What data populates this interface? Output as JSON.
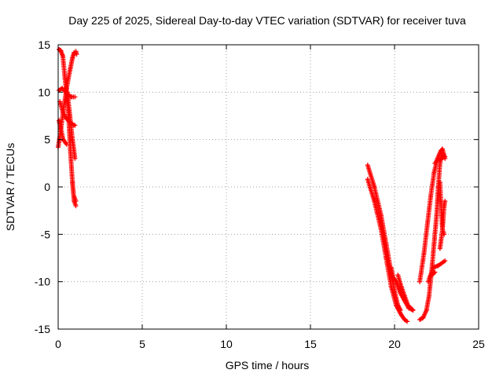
{
  "chart_data": {
    "type": "scatter",
    "title": "Day 225 of 2025, Sidereal Day-to-day VTEC variation (SDTVAR) for receiver tuva",
    "xlabel": "GPS time / hours",
    "ylabel": "SDTVAR / TECUs",
    "xlim": [
      0,
      25
    ],
    "ylim": [
      -15,
      15
    ],
    "xticks": [
      0,
      5,
      10,
      15,
      20,
      25
    ],
    "yticks": [
      -15,
      -10,
      -5,
      0,
      5,
      10,
      15
    ],
    "grid": true,
    "marker": "plus",
    "color": "#ff0000",
    "series": [
      {
        "name": "",
        "segments": [
          [
            [
              0.0,
              4.2
            ],
            [
              0.12,
              5.5
            ],
            [
              0.3,
              8.0
            ],
            [
              0.5,
              10.4
            ],
            [
              0.7,
              12.3
            ],
            [
              0.85,
              13.6
            ],
            [
              0.95,
              14.2
            ]
          ],
          [
            [
              0.05,
              14.5
            ],
            [
              0.15,
              14.4
            ],
            [
              0.28,
              13.8
            ],
            [
              0.4,
              11.5
            ],
            [
              0.5,
              10.0
            ],
            [
              0.62,
              7.5
            ],
            [
              0.72,
              4.0
            ],
            [
              0.85,
              0.5
            ],
            [
              0.95,
              -1.5
            ],
            [
              1.05,
              -2.0
            ]
          ],
          [
            [
              0.05,
              10.2
            ],
            [
              0.25,
              10.4
            ],
            [
              0.45,
              10.0
            ],
            [
              0.6,
              9.7
            ],
            [
              0.8,
              9.5
            ],
            [
              1.0,
              9.5
            ]
          ],
          [
            [
              0.1,
              9.0
            ],
            [
              0.3,
              7.8
            ],
            [
              0.5,
              7.2
            ],
            [
              0.7,
              6.8
            ],
            [
              0.85,
              6.6
            ],
            [
              1.0,
              6.5
            ]
          ],
          [
            [
              0.05,
              7.0
            ],
            [
              0.3,
              5.0
            ],
            [
              0.5,
              4.5
            ]
          ],
          [
            [
              0.55,
              10.0
            ],
            [
              0.7,
              7.5
            ],
            [
              0.85,
              5.0
            ],
            [
              1.0,
              3.0
            ]
          ],
          [
            [
              0.95,
              -1.0
            ],
            [
              1.05,
              -1.5
            ]
          ],
          [
            [
              1.05,
              14.3
            ],
            [
              1.1,
              14.0
            ]
          ]
        ]
      },
      {
        "name": "",
        "segments": [
          [
            [
              18.4,
              2.3
            ],
            [
              18.8,
              0.0
            ],
            [
              19.2,
              -3.0
            ],
            [
              19.5,
              -6.0
            ],
            [
              19.8,
              -9.0
            ],
            [
              20.0,
              -11.0
            ],
            [
              20.2,
              -12.5
            ],
            [
              20.35,
              -13.0
            ]
          ],
          [
            [
              18.4,
              0.8
            ],
            [
              18.8,
              -1.5
            ],
            [
              19.2,
              -4.5
            ],
            [
              19.5,
              -7.5
            ],
            [
              19.8,
              -10.5
            ],
            [
              20.1,
              -12.5
            ],
            [
              20.4,
              -13.5
            ],
            [
              20.6,
              -14.0
            ],
            [
              20.75,
              -14.2
            ]
          ],
          [
            [
              19.8,
              -8.5
            ],
            [
              19.9,
              -9.5
            ],
            [
              20.1,
              -10.0
            ],
            [
              20.35,
              -11.2
            ],
            [
              20.6,
              -12.0
            ],
            [
              20.85,
              -12.8
            ],
            [
              21.1,
              -13.0
            ]
          ],
          [
            [
              20.2,
              -9.3
            ],
            [
              20.4,
              -10.5
            ],
            [
              20.6,
              -11.5
            ],
            [
              20.8,
              -12.5
            ],
            [
              21.1,
              -13.0
            ]
          ],
          [
            [
              21.5,
              -14.0
            ],
            [
              21.7,
              -13.8
            ],
            [
              21.9,
              -13.0
            ],
            [
              22.05,
              -11.5
            ],
            [
              22.2,
              -9.0
            ],
            [
              22.35,
              -6.0
            ],
            [
              22.5,
              -3.0
            ],
            [
              22.6,
              0.0
            ],
            [
              22.7,
              2.5
            ],
            [
              22.8,
              3.5
            ],
            [
              22.9,
              3.2
            ]
          ],
          [
            [
              21.5,
              -10.0
            ],
            [
              21.75,
              -7.0
            ],
            [
              21.95,
              -4.0
            ],
            [
              22.15,
              -1.0
            ],
            [
              22.35,
              1.5
            ],
            [
              22.55,
              3.0
            ],
            [
              22.75,
              3.8
            ],
            [
              22.85,
              4.0
            ],
            [
              23.0,
              3.0
            ]
          ],
          [
            [
              22.4,
              2.5
            ],
            [
              22.6,
              2.9
            ],
            [
              22.8,
              3.0
            ],
            [
              23.0,
              3.2
            ]
          ],
          [
            [
              22.7,
              0.5
            ],
            [
              22.75,
              -1.5
            ],
            [
              22.8,
              -3.0
            ],
            [
              22.85,
              -4.5
            ],
            [
              22.95,
              -5.0
            ]
          ],
          [
            [
              22.7,
              -6.5
            ],
            [
              22.85,
              -4.5
            ],
            [
              22.95,
              -2.0
            ],
            [
              23.0,
              -1.5
            ]
          ],
          [
            [
              22.0,
              -10.0
            ],
            [
              22.3,
              -8.5
            ],
            [
              22.6,
              -8.3
            ],
            [
              23.0,
              -7.8
            ]
          ],
          [
            [
              22.1,
              -9.5
            ],
            [
              22.4,
              -9.0
            ]
          ]
        ]
      }
    ]
  }
}
